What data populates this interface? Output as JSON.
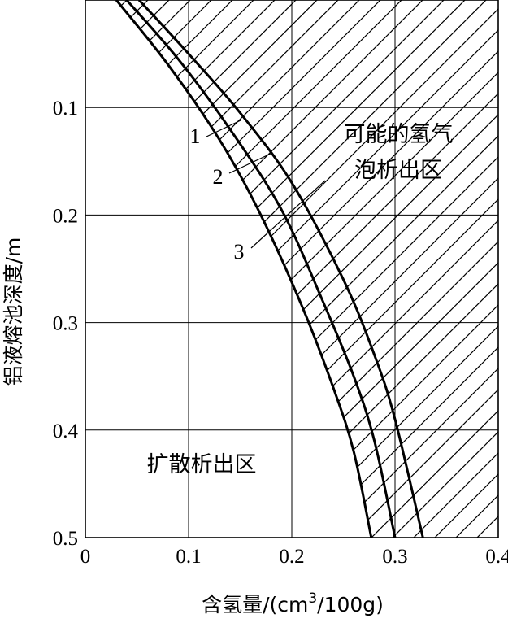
{
  "chart_data": {
    "type": "line",
    "x_axis": {
      "label": "含氢量/(cm",
      "label_sup": "3",
      "label_end": "/100g)",
      "range": [
        0,
        0.4
      ],
      "ticks": [
        "0",
        "0.1",
        "0.2",
        "0.3",
        "0.4"
      ]
    },
    "y_axis": {
      "label": "铝液熔池深度/m",
      "range": [
        0,
        0.5
      ],
      "inverted": true,
      "ticks": [
        "0.1",
        "0.2",
        "0.3",
        "0.4",
        "0.5"
      ]
    },
    "grid": true,
    "series": [
      {
        "name": "1",
        "x": [
          0.052,
          0.1,
          0.15,
          0.2,
          0.25,
          0.28,
          0.3,
          0.327
        ],
        "y": [
          0,
          0.05,
          0.105,
          0.17,
          0.26,
          0.33,
          0.39,
          0.5
        ]
      },
      {
        "name": "2",
        "x": [
          0.04,
          0.09,
          0.14,
          0.19,
          0.23,
          0.26,
          0.28,
          0.3
        ],
        "y": [
          0,
          0.055,
          0.12,
          0.195,
          0.28,
          0.35,
          0.41,
          0.5
        ]
      },
      {
        "name": "3",
        "x": [
          0.03,
          0.08,
          0.13,
          0.17,
          0.21,
          0.24,
          0.26,
          0.277
        ],
        "y": [
          0,
          0.06,
          0.13,
          0.2,
          0.285,
          0.36,
          0.42,
          0.5
        ]
      }
    ],
    "hatched_region": {
      "label_line1": "可能的氢气",
      "label_line2": "泡析出区"
    },
    "clear_region": {
      "label": "扩散析出区"
    }
  }
}
